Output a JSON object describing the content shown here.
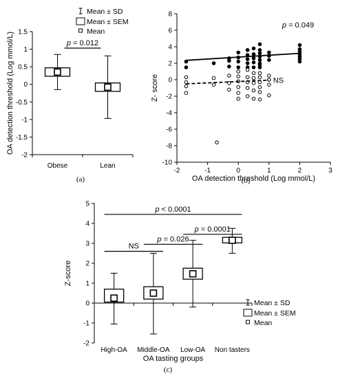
{
  "chart_data": [
    {
      "panel": "a",
      "type": "box",
      "caption": "(a)",
      "ylabel": "OA detection threshold (Log mmol/L)",
      "ylim": [
        -2,
        1.5
      ],
      "yticks": [
        -2,
        -1.5,
        -1,
        -0.5,
        0,
        0.5,
        1,
        1.5
      ],
      "categories": [
        "Obese",
        "Lean"
      ],
      "groups": [
        {
          "mean": 0.35,
          "sem_low": 0.23,
          "sem_high": 0.47,
          "sd_low": -0.15,
          "sd_high": 0.85
        },
        {
          "mean": -0.08,
          "sem_low": -0.2,
          "sem_high": 0.04,
          "sd_low": -0.97,
          "sd_high": 0.81
        }
      ],
      "annotations": [
        {
          "text": "p = 0.012",
          "from": 0,
          "to": 1,
          "y": 1.03
        }
      ],
      "legend": [
        "Mean ± SD",
        "Mean ± SEM",
        "Mean"
      ]
    },
    {
      "panel": "b",
      "type": "scatter",
      "caption": "(b)",
      "xlabel": "OA detection threshold (Log mmol/L)",
      "ylabel": "Z- score",
      "xlim": [
        -2,
        3
      ],
      "ylim": [
        -10,
        8
      ],
      "xticks": [
        -2,
        -1,
        0,
        1,
        2,
        3
      ],
      "yticks": [
        -10,
        -8,
        -6,
        -4,
        -2,
        0,
        2,
        4,
        6,
        8
      ],
      "series": [
        {
          "filled": true,
          "trend": {
            "x": [
              -1.7,
              2.0
            ],
            "y": [
              2.35,
              3.2
            ],
            "style": "solid"
          },
          "annotation": "p = 0.049",
          "points": [
            [
              -1.7,
              2.2
            ],
            [
              -1.7,
              1.5
            ],
            [
              -0.8,
              2.0
            ],
            [
              -0.3,
              2.3
            ],
            [
              -0.3,
              1.6
            ],
            [
              -0.3,
              2.6
            ],
            [
              0.0,
              2.2
            ],
            [
              0.0,
              1.5
            ],
            [
              0.0,
              2.7
            ],
            [
              0.0,
              3.3
            ],
            [
              0.3,
              2.0
            ],
            [
              0.3,
              2.5
            ],
            [
              0.3,
              3.0
            ],
            [
              0.3,
              3.6
            ],
            [
              0.3,
              1.5
            ],
            [
              0.5,
              2.1
            ],
            [
              0.5,
              2.6
            ],
            [
              0.5,
              3.1
            ],
            [
              0.5,
              1.5
            ],
            [
              0.5,
              3.8
            ],
            [
              0.7,
              2.0
            ],
            [
              0.7,
              2.4
            ],
            [
              0.7,
              2.8
            ],
            [
              0.7,
              3.2
            ],
            [
              0.7,
              3.6
            ],
            [
              0.7,
              4.3
            ],
            [
              0.7,
              1.5
            ],
            [
              0.7,
              1.8
            ],
            [
              1.0,
              2.4
            ],
            [
              1.0,
              2.9
            ],
            [
              1.0,
              3.3
            ],
            [
              2.0,
              2.2
            ],
            [
              2.0,
              2.5
            ],
            [
              2.0,
              2.8
            ],
            [
              2.0,
              3.1
            ],
            [
              2.0,
              3.4
            ],
            [
              2.0,
              3.7
            ],
            [
              2.0,
              4.2
            ]
          ]
        },
        {
          "filled": false,
          "trend": {
            "x": [
              -1.7,
              1.0
            ],
            "y": [
              -0.5,
              -0.05
            ],
            "style": "dashed"
          },
          "annotation": "NS",
          "points": [
            [
              -1.7,
              -0.3
            ],
            [
              -1.7,
              -0.8
            ],
            [
              -1.7,
              -1.6
            ],
            [
              -1.7,
              0.3
            ],
            [
              -0.8,
              0.2
            ],
            [
              -0.8,
              -0.6
            ],
            [
              -0.7,
              -7.6
            ],
            [
              -0.3,
              0.5
            ],
            [
              -0.3,
              -0.4
            ],
            [
              -0.3,
              -1.2
            ],
            [
              0.0,
              0.4
            ],
            [
              0.0,
              -0.2
            ],
            [
              0.0,
              -0.9
            ],
            [
              0.0,
              -1.6
            ],
            [
              0.0,
              -2.3
            ],
            [
              0.0,
              1.0
            ],
            [
              0.3,
              0.3
            ],
            [
              0.3,
              -0.3
            ],
            [
              0.3,
              -1.0
            ],
            [
              0.3,
              -2.0
            ],
            [
              0.3,
              1.2
            ],
            [
              0.5,
              0.2
            ],
            [
              0.5,
              -0.4
            ],
            [
              0.5,
              -1.3
            ],
            [
              0.5,
              -2.3
            ],
            [
              0.5,
              0.8
            ],
            [
              0.7,
              0.3
            ],
            [
              0.7,
              -0.3
            ],
            [
              0.7,
              -0.9
            ],
            [
              0.7,
              -1.5
            ],
            [
              0.7,
              -2.4
            ],
            [
              0.7,
              0.8
            ],
            [
              1.0,
              0.0
            ],
            [
              1.0,
              -0.6
            ],
            [
              1.0,
              -1.9
            ],
            [
              1.0,
              0.5
            ]
          ]
        }
      ]
    },
    {
      "panel": "c",
      "type": "box",
      "caption": "(c)",
      "xlabel": "OA tasting groups",
      "ylabel": "Z-score",
      "ylim": [
        -2,
        5
      ],
      "yticks": [
        -2,
        -1,
        0,
        1,
        2,
        3,
        4,
        5
      ],
      "categories": [
        "High-OA",
        "Middle-OA",
        "Low-OA",
        "Non tasters"
      ],
      "groups": [
        {
          "mean": 0.25,
          "sem_low": 0.05,
          "sem_high": 0.7,
          "sd_low": -1.05,
          "sd_high": 1.5
        },
        {
          "mean": 0.5,
          "sem_low": 0.2,
          "sem_high": 0.82,
          "sd_low": -1.55,
          "sd_high": 2.5
        },
        {
          "mean": 1.47,
          "sem_low": 1.2,
          "sem_high": 1.75,
          "sd_low": -0.2,
          "sd_high": 3.15
        },
        {
          "mean": 3.15,
          "sem_low": 3.02,
          "sem_high": 3.3,
          "sd_low": 2.5,
          "sd_high": 3.75
        }
      ],
      "annotations": [
        {
          "text": "p < 0.0001",
          "from": 0,
          "to": 3,
          "y": 4.45
        },
        {
          "text": "p = 0.0001",
          "from": 2,
          "to": 3,
          "y": 3.45
        },
        {
          "text": "p = 0.026",
          "from": 1,
          "to": 2,
          "y": 2.95
        },
        {
          "text": "NS",
          "from": 0,
          "to": 1,
          "y": 2.6
        }
      ],
      "legend": [
        "Mean ± SD",
        "Mean ± SEM",
        "Mean"
      ]
    }
  ]
}
